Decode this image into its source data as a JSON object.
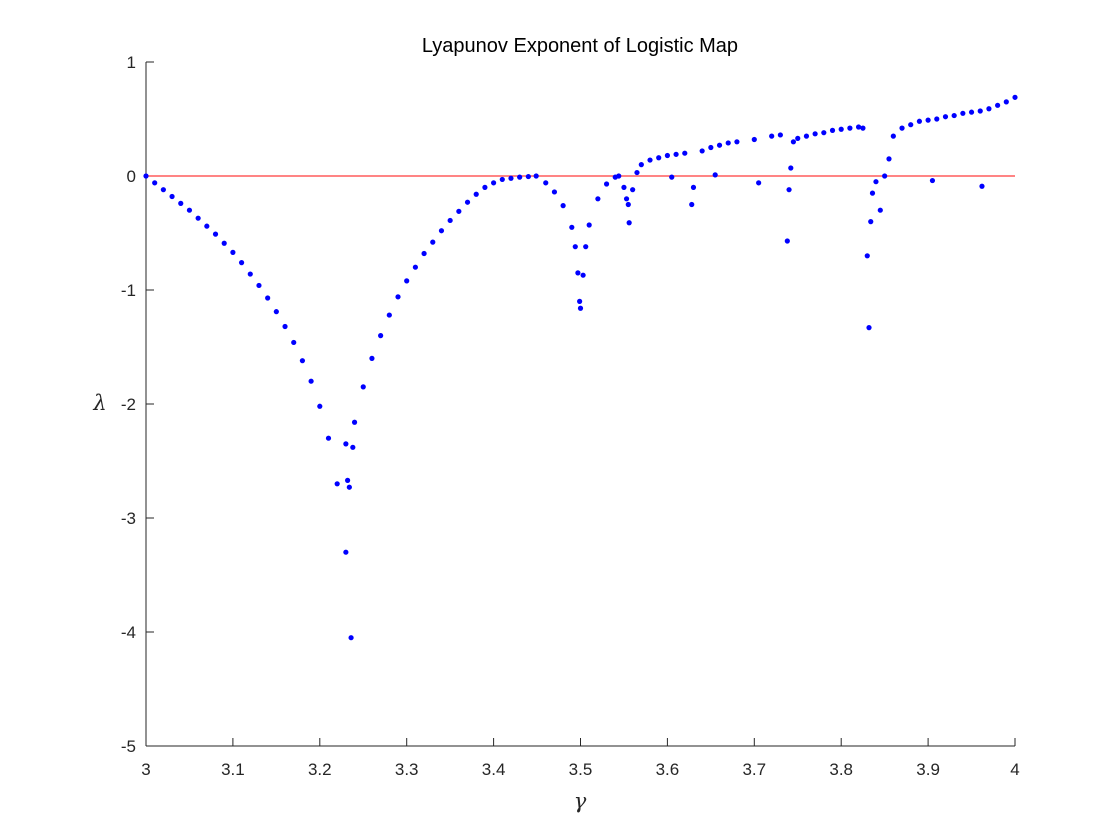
{
  "chart_data": {
    "type": "scatter",
    "title": "Lyapunov Exponent of Logistic Map",
    "xlabel": "γ",
    "ylabel": "λ",
    "xlim": [
      3,
      4
    ],
    "ylim": [
      -5,
      1
    ],
    "xticks": [
      3,
      3.1,
      3.2,
      3.3,
      3.4,
      3.5,
      3.6,
      3.7,
      3.8,
      3.9,
      4
    ],
    "yticks": [
      1,
      0,
      -1,
      -2,
      -3,
      -4,
      -5
    ],
    "xtick_labels": [
      "3",
      "3.1",
      "3.2",
      "3.3",
      "3.4",
      "3.5",
      "3.6",
      "3.7",
      "3.8",
      "3.9",
      "4"
    ],
    "ytick_labels": [
      "1",
      "0",
      "-1",
      "-2",
      "-3",
      "-4",
      "-5"
    ],
    "grid": false,
    "reference_line": {
      "y": 0,
      "color": "#ff3b3b"
    },
    "marker_color": "#0000ff",
    "series": [
      {
        "points": [
          [
            3.0,
            0.0
          ],
          [
            3.01,
            -0.06
          ],
          [
            3.02,
            -0.12
          ],
          [
            3.03,
            -0.18
          ],
          [
            3.04,
            -0.24
          ],
          [
            3.05,
            -0.3
          ],
          [
            3.06,
            -0.37
          ],
          [
            3.07,
            -0.44
          ],
          [
            3.08,
            -0.51
          ],
          [
            3.09,
            -0.59
          ],
          [
            3.1,
            -0.67
          ],
          [
            3.11,
            -0.76
          ],
          [
            3.12,
            -0.86
          ],
          [
            3.13,
            -0.96
          ],
          [
            3.14,
            -1.07
          ],
          [
            3.15,
            -1.19
          ],
          [
            3.16,
            -1.32
          ],
          [
            3.17,
            -1.46
          ],
          [
            3.18,
            -1.62
          ],
          [
            3.19,
            -1.8
          ],
          [
            3.2,
            -2.02
          ],
          [
            3.21,
            -2.3
          ],
          [
            3.22,
            -2.7
          ],
          [
            3.23,
            -3.3
          ],
          [
            3.236,
            -4.05
          ],
          [
            3.23,
            -2.35
          ],
          [
            3.232,
            -2.67
          ],
          [
            3.234,
            -2.73
          ],
          [
            3.238,
            -2.38
          ],
          [
            3.24,
            -2.16
          ],
          [
            3.25,
            -1.85
          ],
          [
            3.26,
            -1.6
          ],
          [
            3.27,
            -1.4
          ],
          [
            3.28,
            -1.22
          ],
          [
            3.29,
            -1.06
          ],
          [
            3.3,
            -0.92
          ],
          [
            3.31,
            -0.8
          ],
          [
            3.32,
            -0.68
          ],
          [
            3.33,
            -0.58
          ],
          [
            3.34,
            -0.48
          ],
          [
            3.35,
            -0.39
          ],
          [
            3.36,
            -0.31
          ],
          [
            3.37,
            -0.23
          ],
          [
            3.38,
            -0.16
          ],
          [
            3.39,
            -0.1
          ],
          [
            3.4,
            -0.06
          ],
          [
            3.41,
            -0.03
          ],
          [
            3.42,
            -0.02
          ],
          [
            3.43,
            -0.01
          ],
          [
            3.44,
            -0.005
          ],
          [
            3.449,
            0.0
          ],
          [
            3.46,
            -0.06
          ],
          [
            3.47,
            -0.14
          ],
          [
            3.48,
            -0.26
          ],
          [
            3.49,
            -0.45
          ],
          [
            3.494,
            -0.62
          ],
          [
            3.497,
            -0.85
          ],
          [
            3.499,
            -1.1
          ],
          [
            3.5,
            -1.16
          ],
          [
            3.503,
            -0.87
          ],
          [
            3.506,
            -0.62
          ],
          [
            3.51,
            -0.43
          ],
          [
            3.52,
            -0.2
          ],
          [
            3.53,
            -0.07
          ],
          [
            3.54,
            -0.01
          ],
          [
            3.544,
            0.0
          ],
          [
            3.55,
            -0.1
          ],
          [
            3.553,
            -0.2
          ],
          [
            3.555,
            -0.25
          ],
          [
            3.556,
            -0.41
          ],
          [
            3.56,
            -0.12
          ],
          [
            3.565,
            0.03
          ],
          [
            3.57,
            0.1
          ],
          [
            3.58,
            0.14
          ],
          [
            3.59,
            0.16
          ],
          [
            3.6,
            0.18
          ],
          [
            3.605,
            -0.01
          ],
          [
            3.61,
            0.19
          ],
          [
            3.62,
            0.2
          ],
          [
            3.628,
            -0.25
          ],
          [
            3.63,
            -0.1
          ],
          [
            3.64,
            0.22
          ],
          [
            3.65,
            0.25
          ],
          [
            3.655,
            0.01
          ],
          [
            3.66,
            0.27
          ],
          [
            3.67,
            0.29
          ],
          [
            3.68,
            0.3
          ],
          [
            3.7,
            0.32
          ],
          [
            3.705,
            -0.06
          ],
          [
            3.72,
            0.35
          ],
          [
            3.73,
            0.36
          ],
          [
            3.738,
            -0.57
          ],
          [
            3.74,
            -0.12
          ],
          [
            3.742,
            0.07
          ],
          [
            3.745,
            0.3
          ],
          [
            3.75,
            0.33
          ],
          [
            3.76,
            0.35
          ],
          [
            3.77,
            0.37
          ],
          [
            3.78,
            0.38
          ],
          [
            3.79,
            0.4
          ],
          [
            3.8,
            0.41
          ],
          [
            3.81,
            0.42
          ],
          [
            3.82,
            0.43
          ],
          [
            3.825,
            0.42
          ],
          [
            3.83,
            -0.7
          ],
          [
            3.832,
            -1.33
          ],
          [
            3.834,
            -0.4
          ],
          [
            3.836,
            -0.15
          ],
          [
            3.84,
            -0.05
          ],
          [
            3.845,
            -0.3
          ],
          [
            3.85,
            0.0
          ],
          [
            3.855,
            0.15
          ],
          [
            3.86,
            0.35
          ],
          [
            3.87,
            0.42
          ],
          [
            3.88,
            0.45
          ],
          [
            3.89,
            0.48
          ],
          [
            3.9,
            0.49
          ],
          [
            3.905,
            -0.04
          ],
          [
            3.91,
            0.5
          ],
          [
            3.92,
            0.52
          ],
          [
            3.93,
            0.53
          ],
          [
            3.94,
            0.55
          ],
          [
            3.95,
            0.56
          ],
          [
            3.96,
            0.57
          ],
          [
            3.962,
            -0.09
          ],
          [
            3.97,
            0.59
          ],
          [
            3.98,
            0.62
          ],
          [
            3.99,
            0.65
          ],
          [
            4.0,
            0.69
          ]
        ]
      }
    ]
  }
}
